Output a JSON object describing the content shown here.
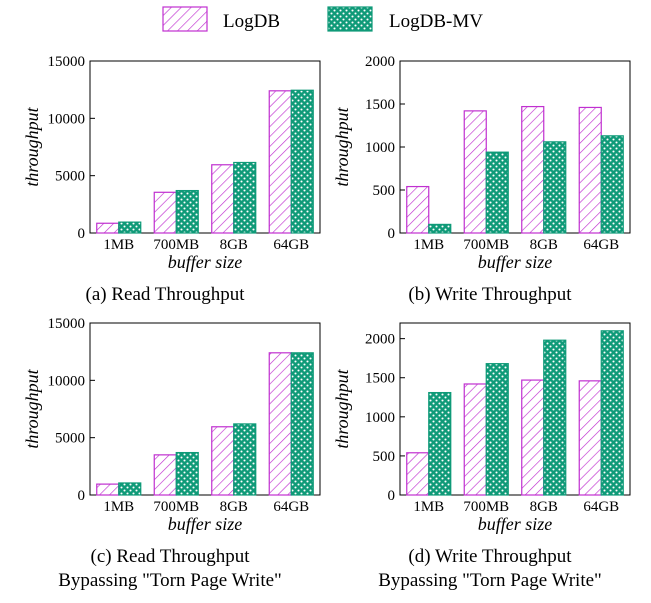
{
  "legend": [
    {
      "label": "LogDB",
      "pattern": "hatch",
      "color": "#c030d0"
    },
    {
      "label": "LogDB-MV",
      "pattern": "dots",
      "color": "#0f9a78"
    }
  ],
  "chart_data": [
    {
      "type": "bar",
      "caption": [
        "(a) Read Throughput"
      ],
      "xlabel": "buffer size",
      "ylabel": "throughput",
      "categories": [
        "1MB",
        "700MB",
        "8GB",
        "64GB"
      ],
      "ylim": [
        0,
        15000
      ],
      "yticks": [
        0,
        5000,
        10000,
        15000
      ],
      "series": [
        {
          "name": "LogDB",
          "values": [
            850,
            3550,
            5950,
            12400
          ]
        },
        {
          "name": "LogDB-MV",
          "values": [
            950,
            3700,
            6150,
            12450
          ]
        }
      ]
    },
    {
      "type": "bar",
      "caption": [
        "(b) Write Throughput"
      ],
      "xlabel": "buffer size",
      "ylabel": "throughput",
      "categories": [
        "1MB",
        "700MB",
        "8GB",
        "64GB"
      ],
      "ylim": [
        0,
        2000
      ],
      "yticks": [
        0,
        500,
        1000,
        1500,
        2000
      ],
      "series": [
        {
          "name": "LogDB",
          "values": [
            540,
            1420,
            1470,
            1460
          ]
        },
        {
          "name": "LogDB-MV",
          "values": [
            100,
            940,
            1060,
            1130
          ]
        }
      ]
    },
    {
      "type": "bar",
      "caption": [
        "(c) Read Throughput",
        "Bypassing \"Torn Page Write\""
      ],
      "xlabel": "buffer size",
      "ylabel": "throughput",
      "categories": [
        "1MB",
        "700MB",
        "8GB",
        "64GB"
      ],
      "ylim": [
        0,
        15000
      ],
      "yticks": [
        0,
        5000,
        10000,
        15000
      ],
      "series": [
        {
          "name": "LogDB",
          "values": [
            950,
            3500,
            5950,
            12400
          ]
        },
        {
          "name": "LogDB-MV",
          "values": [
            1050,
            3700,
            6200,
            12400
          ]
        }
      ]
    },
    {
      "type": "bar",
      "caption": [
        "(d) Write Throughput",
        "Bypassing \"Torn Page Write\""
      ],
      "xlabel": "buffer size",
      "ylabel": "throughput",
      "categories": [
        "1MB",
        "700MB",
        "8GB",
        "64GB"
      ],
      "ylim": [
        0,
        2200
      ],
      "yticks": [
        0,
        500,
        1000,
        1500,
        2000
      ],
      "series": [
        {
          "name": "LogDB",
          "values": [
            540,
            1420,
            1470,
            1460
          ]
        },
        {
          "name": "LogDB-MV",
          "values": [
            1310,
            1680,
            1980,
            2100
          ]
        }
      ]
    }
  ]
}
